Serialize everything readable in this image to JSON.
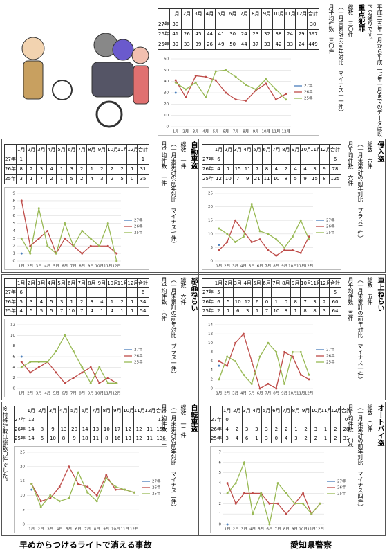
{
  "header": {
    "notice": "平成二五年一月から平成二七年一月までのデータは以下の通りです。"
  },
  "months": [
    "1月",
    "2月",
    "3月",
    "4月",
    "5月",
    "6月",
    "7月",
    "8月",
    "9月",
    "10月",
    "11月",
    "12月"
  ],
  "total_label": "合計",
  "sections": [
    {
      "title": "重点犯罪",
      "stats": [
        "総数　三〇件",
        "（一月末累計の前年対比　マイナス一一件）",
        "月平均件数　三〇件"
      ],
      "ylim": [
        0,
        60
      ],
      "yticks": [
        0,
        10,
        20,
        30,
        40,
        50,
        60
      ],
      "rows": [
        {
          "name": "27年",
          "color": "#4a7ebb",
          "values": [
            30,
            null,
            null,
            null,
            null,
            null,
            null,
            null,
            null,
            null,
            null,
            null
          ],
          "total": 30
        },
        {
          "name": "26年",
          "color": "#be4b48",
          "values": [
            41,
            26,
            45,
            44,
            41,
            30,
            24,
            23,
            32,
            38,
            24,
            29
          ],
          "total": 397
        },
        {
          "name": "25年",
          "color": "#98b954",
          "values": [
            39,
            33,
            39,
            26,
            49,
            50,
            44,
            37,
            33,
            42,
            33,
            24
          ],
          "total": 449
        }
      ]
    },
    {
      "title": "自動車盗",
      "stats": [
        "総数　一件",
        "（一月末累計の前年対比　マイナス七件）",
        "月平均件数　一件"
      ],
      "ylim": [
        0,
        9
      ],
      "yticks": [
        0,
        1,
        2,
        3,
        4,
        5,
        6,
        7,
        8,
        9
      ],
      "rows": [
        {
          "name": "27年",
          "color": "#4a7ebb",
          "values": [
            1,
            null,
            null,
            null,
            null,
            null,
            null,
            null,
            null,
            null,
            null,
            null
          ],
          "total": 1
        },
        {
          "name": "26年",
          "color": "#be4b48",
          "values": [
            8,
            2,
            3,
            4,
            1,
            3,
            2,
            1,
            2,
            2,
            2,
            1
          ],
          "total": 31
        },
        {
          "name": "25年",
          "color": "#98b954",
          "values": [
            3,
            1,
            7,
            2,
            1,
            5,
            2,
            4,
            3,
            2,
            5,
            0
          ],
          "total": 35
        }
      ]
    },
    {
      "title": "侵入盗",
      "stats": [
        "総数　六件",
        "（一月末累計の前年対比　プラス二件）",
        "月平均件数　六件"
      ],
      "ylim": [
        0,
        25
      ],
      "yticks": [
        0,
        5,
        10,
        15,
        20,
        25
      ],
      "rows": [
        {
          "name": "27年",
          "color": "#4a7ebb",
          "values": [
            6,
            null,
            null,
            null,
            null,
            null,
            null,
            null,
            null,
            null,
            null,
            null
          ],
          "total": 6
        },
        {
          "name": "26年",
          "color": "#be4b48",
          "values": [
            4,
            7,
            15,
            11,
            7,
            8,
            4,
            2,
            4,
            4,
            3,
            9
          ],
          "total": 78
        },
        {
          "name": "25年",
          "color": "#98b954",
          "values": [
            12,
            10,
            7,
            9,
            21,
            11,
            10,
            8,
            5,
            9,
            15,
            8
          ],
          "total": 125
        }
      ]
    },
    {
      "title": "部品ねらい",
      "stats": [
        "総数　六件",
        "（一月末累計の前年対比　プラス一件）",
        "月平均件数　六件"
      ],
      "ylim": [
        0,
        12
      ],
      "yticks": [
        0,
        2,
        4,
        6,
        8,
        10,
        12
      ],
      "rows": [
        {
          "name": "27年",
          "color": "#4a7ebb",
          "values": [
            6,
            null,
            null,
            null,
            null,
            null,
            null,
            null,
            null,
            null,
            null,
            null
          ],
          "total": 6
        },
        {
          "name": "26年",
          "color": "#be4b48",
          "values": [
            5,
            3,
            4,
            5,
            3,
            1,
            2,
            3,
            4,
            1,
            2,
            1
          ],
          "total": 34
        },
        {
          "name": "25年",
          "color": "#98b954",
          "values": [
            4,
            5,
            5,
            5,
            7,
            10,
            7,
            4,
            1,
            4,
            1,
            1
          ],
          "total": 54
        }
      ]
    },
    {
      "title": "車上ねらい",
      "stats": [
        "総数　五件",
        "（一月末累計の前年対比　マイナス一件）",
        "月平均件数　五件"
      ],
      "ylim": [
        0,
        14
      ],
      "yticks": [
        0,
        2,
        4,
        6,
        8,
        10,
        12,
        14
      ],
      "rows": [
        {
          "name": "27年",
          "color": "#4a7ebb",
          "values": [
            5,
            null,
            null,
            null,
            null,
            null,
            null,
            null,
            null,
            null,
            null,
            null
          ],
          "total": 5
        },
        {
          "name": "26年",
          "color": "#be4b48",
          "values": [
            6,
            5,
            10,
            12,
            6,
            0,
            1,
            0,
            8,
            7,
            3,
            2
          ],
          "total": 60
        },
        {
          "name": "25年",
          "color": "#98b954",
          "values": [
            2,
            7,
            6,
            3,
            1,
            7,
            10,
            8,
            1,
            8,
            8,
            3
          ],
          "total": 64
        }
      ]
    },
    {
      "title": "自転車盗",
      "stats": [
        "総数　一二件",
        "（一月末累計の前年対比　マイナス二件）",
        "月平均件数　一二件"
      ],
      "ylim": [
        0,
        25
      ],
      "yticks": [
        0,
        5,
        10,
        15,
        20,
        25
      ],
      "rows": [
        {
          "name": "27年",
          "color": "#4a7ebb",
          "values": [
            12,
            null,
            null,
            null,
            null,
            null,
            null,
            null,
            null,
            null,
            null,
            null
          ],
          "total": 12
        },
        {
          "name": "26年",
          "color": "#be4b48",
          "values": [
            14,
            8,
            9,
            13,
            20,
            14,
            13,
            10,
            17,
            12,
            12,
            11
          ],
          "total": 153
        },
        {
          "name": "25年",
          "color": "#98b954",
          "values": [
            14,
            6,
            10,
            8,
            9,
            18,
            11,
            8,
            16,
            13,
            12,
            11
          ],
          "total": 136
        }
      ]
    },
    {
      "title": "オートバイ盗",
      "stats": [
        "総数　〇件",
        "（一月末累計の前年対比　マイナス四件）",
        "月平均件数　〇件"
      ],
      "ylim": [
        0,
        7
      ],
      "yticks": [
        0,
        1,
        2,
        3,
        4,
        5,
        6,
        7
      ],
      "rows": [
        {
          "name": "27年",
          "color": "#4a7ebb",
          "values": [
            0,
            null,
            null,
            null,
            null,
            null,
            null,
            null,
            null,
            null,
            null,
            null
          ],
          "total": 0
        },
        {
          "name": "26年",
          "color": "#be4b48",
          "values": [
            4,
            2,
            3,
            3,
            3,
            2,
            2,
            1,
            2,
            3,
            1,
            2
          ],
          "total": 28
        },
        {
          "name": "25年",
          "color": "#98b954",
          "values": [
            3,
            4,
            6,
            1,
            3,
            0,
            4,
            3,
            2,
            2,
            1,
            2
          ],
          "total": 31
        }
      ]
    }
  ],
  "note": "※特殊詐欺は総数〇件でした。",
  "footer": {
    "slogan": "早めからつけるライトで消える事故",
    "issuer": "愛知県警察"
  }
}
